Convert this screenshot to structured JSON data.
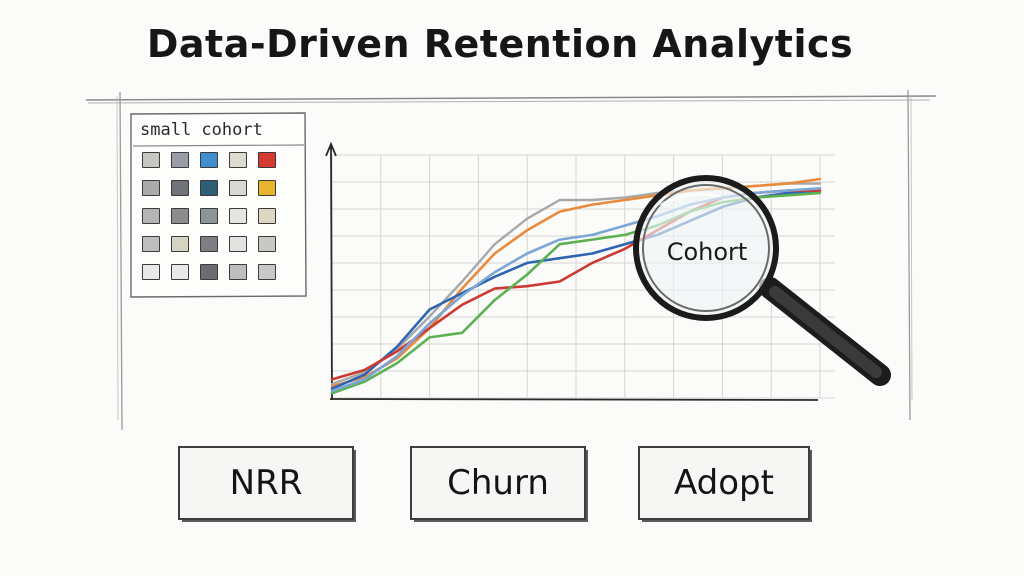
{
  "title": "Data-Driven Retention Analytics",
  "cohort_panel": {
    "label": "small cohort",
    "swatches": [
      [
        "#c7c7c2",
        "#9a9ca6",
        "#3d8fd0",
        "#dedbd3",
        "#d63a2e"
      ],
      [
        "#a9aaaa",
        "#707478",
        "#2f5f77",
        "#d7d9d4",
        "#e8b62c"
      ],
      [
        "#b5b5b3",
        "#8d8d8d",
        "#8f9496",
        "#e4e4e1",
        "#ded6c4"
      ],
      [
        "#bdbdbd",
        "#d6d3c2",
        "#7d7f84",
        "#e2e2e0",
        "#c8c8c5"
      ],
      [
        "#e9e9e7",
        "#e9e9e7",
        "#6b6d70",
        "#bdbdbb",
        "#c9c9c7"
      ]
    ]
  },
  "chart_data": {
    "type": "line",
    "title": "",
    "xlabel": "",
    "ylabel": "",
    "x": [
      0,
      1,
      2,
      3,
      4,
      5,
      6,
      7,
      8,
      9,
      10,
      11,
      12,
      13,
      14,
      15
    ],
    "ylim": [
      0,
      100
    ],
    "grid": true,
    "series": [
      {
        "color": "#a8a8a8",
        "values": [
          6,
          11,
          21,
          35,
          50,
          66,
          77,
          85,
          85,
          86,
          88,
          89,
          90,
          91,
          92,
          92
        ]
      },
      {
        "color": "#e98a3c",
        "values": [
          5,
          9,
          17,
          30,
          47,
          62,
          72,
          80,
          83,
          85,
          87,
          89,
          90,
          91,
          92,
          94
        ]
      },
      {
        "color": "#2f64b2",
        "values": [
          4,
          10,
          22,
          38,
          45,
          52,
          58,
          60,
          62,
          66,
          70,
          76,
          82,
          86,
          88,
          89
        ]
      },
      {
        "color": "#cc3b33",
        "values": [
          8,
          12,
          20,
          30,
          40,
          47,
          48,
          50,
          58,
          64,
          72,
          80,
          86,
          88,
          89,
          89
        ]
      },
      {
        "color": "#5cb153",
        "values": [
          2,
          7,
          15,
          26,
          28,
          42,
          53,
          66,
          68,
          70,
          74,
          80,
          84,
          86,
          87,
          88
        ]
      },
      {
        "color": "#7ba6d6",
        "values": [
          3,
          8,
          18,
          32,
          44,
          54,
          62,
          68,
          70,
          74,
          78,
          83,
          86,
          88,
          89,
          90
        ]
      }
    ]
  },
  "lens": {
    "label": "Cohort"
  },
  "buttons": {
    "nrr": "NRR",
    "churn": "Churn",
    "adopt": "Adopt"
  }
}
